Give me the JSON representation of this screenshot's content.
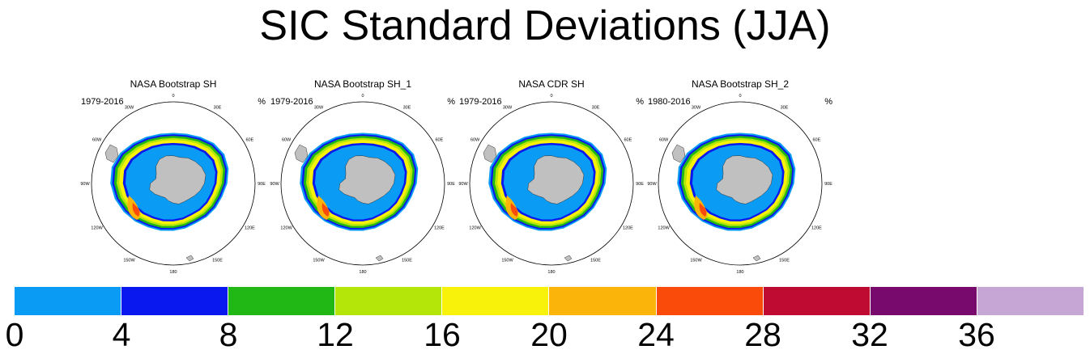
{
  "title": "SIC Standard Deviations (JJA)",
  "panels": [
    {
      "title": "NASA Bootstrap SH",
      "years": "1979-2016",
      "unit": "%"
    },
    {
      "title": "NASA Bootstrap SH_1",
      "years": "1979-2016",
      "unit": "%"
    },
    {
      "title": "NASA CDR SH",
      "years": "1979-2016",
      "unit": "%"
    },
    {
      "title": "NASA Bootstrap SH_2",
      "years": "1980-2016",
      "unit": "%"
    }
  ],
  "longitude_labels": [
    "0",
    "30E",
    "60E",
    "90E",
    "120E",
    "150E",
    "180",
    "150W",
    "120W",
    "90W",
    "60W",
    "30W"
  ],
  "colorbar": {
    "colors": [
      "#0a9cf5",
      "#0a18f0",
      "#21b714",
      "#b4e60a",
      "#f8f20a",
      "#fbb40a",
      "#fb4b0a",
      "#bf0a32",
      "#780a6e",
      "#c6a6d5"
    ],
    "labels": [
      "0",
      "4",
      "8",
      "12",
      "16",
      "20",
      "24",
      "28",
      "32",
      "36"
    ]
  }
}
